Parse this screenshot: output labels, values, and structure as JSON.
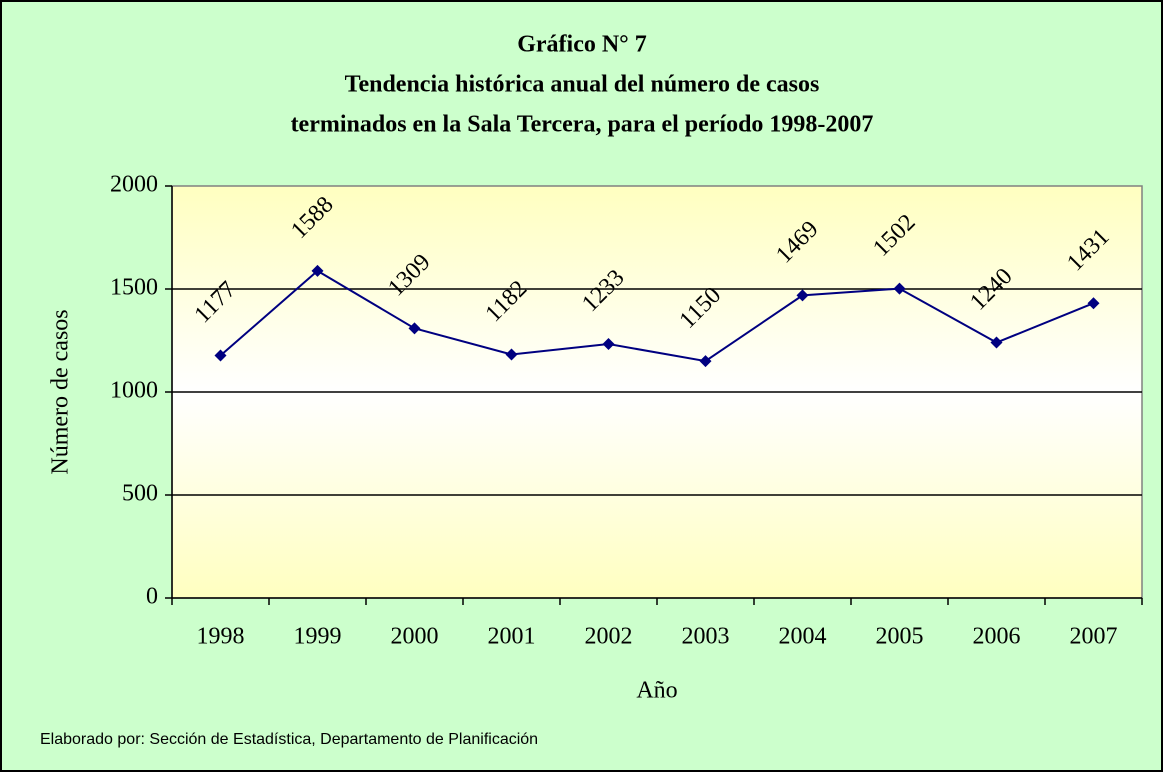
{
  "chart_data": {
    "type": "line",
    "title": [
      "Gráfico N° 7",
      "Tendencia histórica anual del número de casos",
      "terminados en la Sala Tercera, para el período 1998-2007"
    ],
    "xlabel": "Año",
    "ylabel": "Número de casos",
    "note": "Elaborado por: Sección de Estadística, Departamento de Planificación",
    "categories": [
      "1998",
      "1999",
      "2000",
      "2001",
      "2002",
      "2003",
      "2004",
      "2005",
      "2006",
      "2007"
    ],
    "series": [
      {
        "color": "#000080",
        "values": [
          1177,
          1588,
          1309,
          1182,
          1233,
          1150,
          1469,
          1502,
          1240,
          1431
        ]
      }
    ],
    "ylim": [
      0,
      2000
    ],
    "yticks": [
      0,
      500,
      1000,
      1500,
      2000
    ],
    "grid": true
  }
}
